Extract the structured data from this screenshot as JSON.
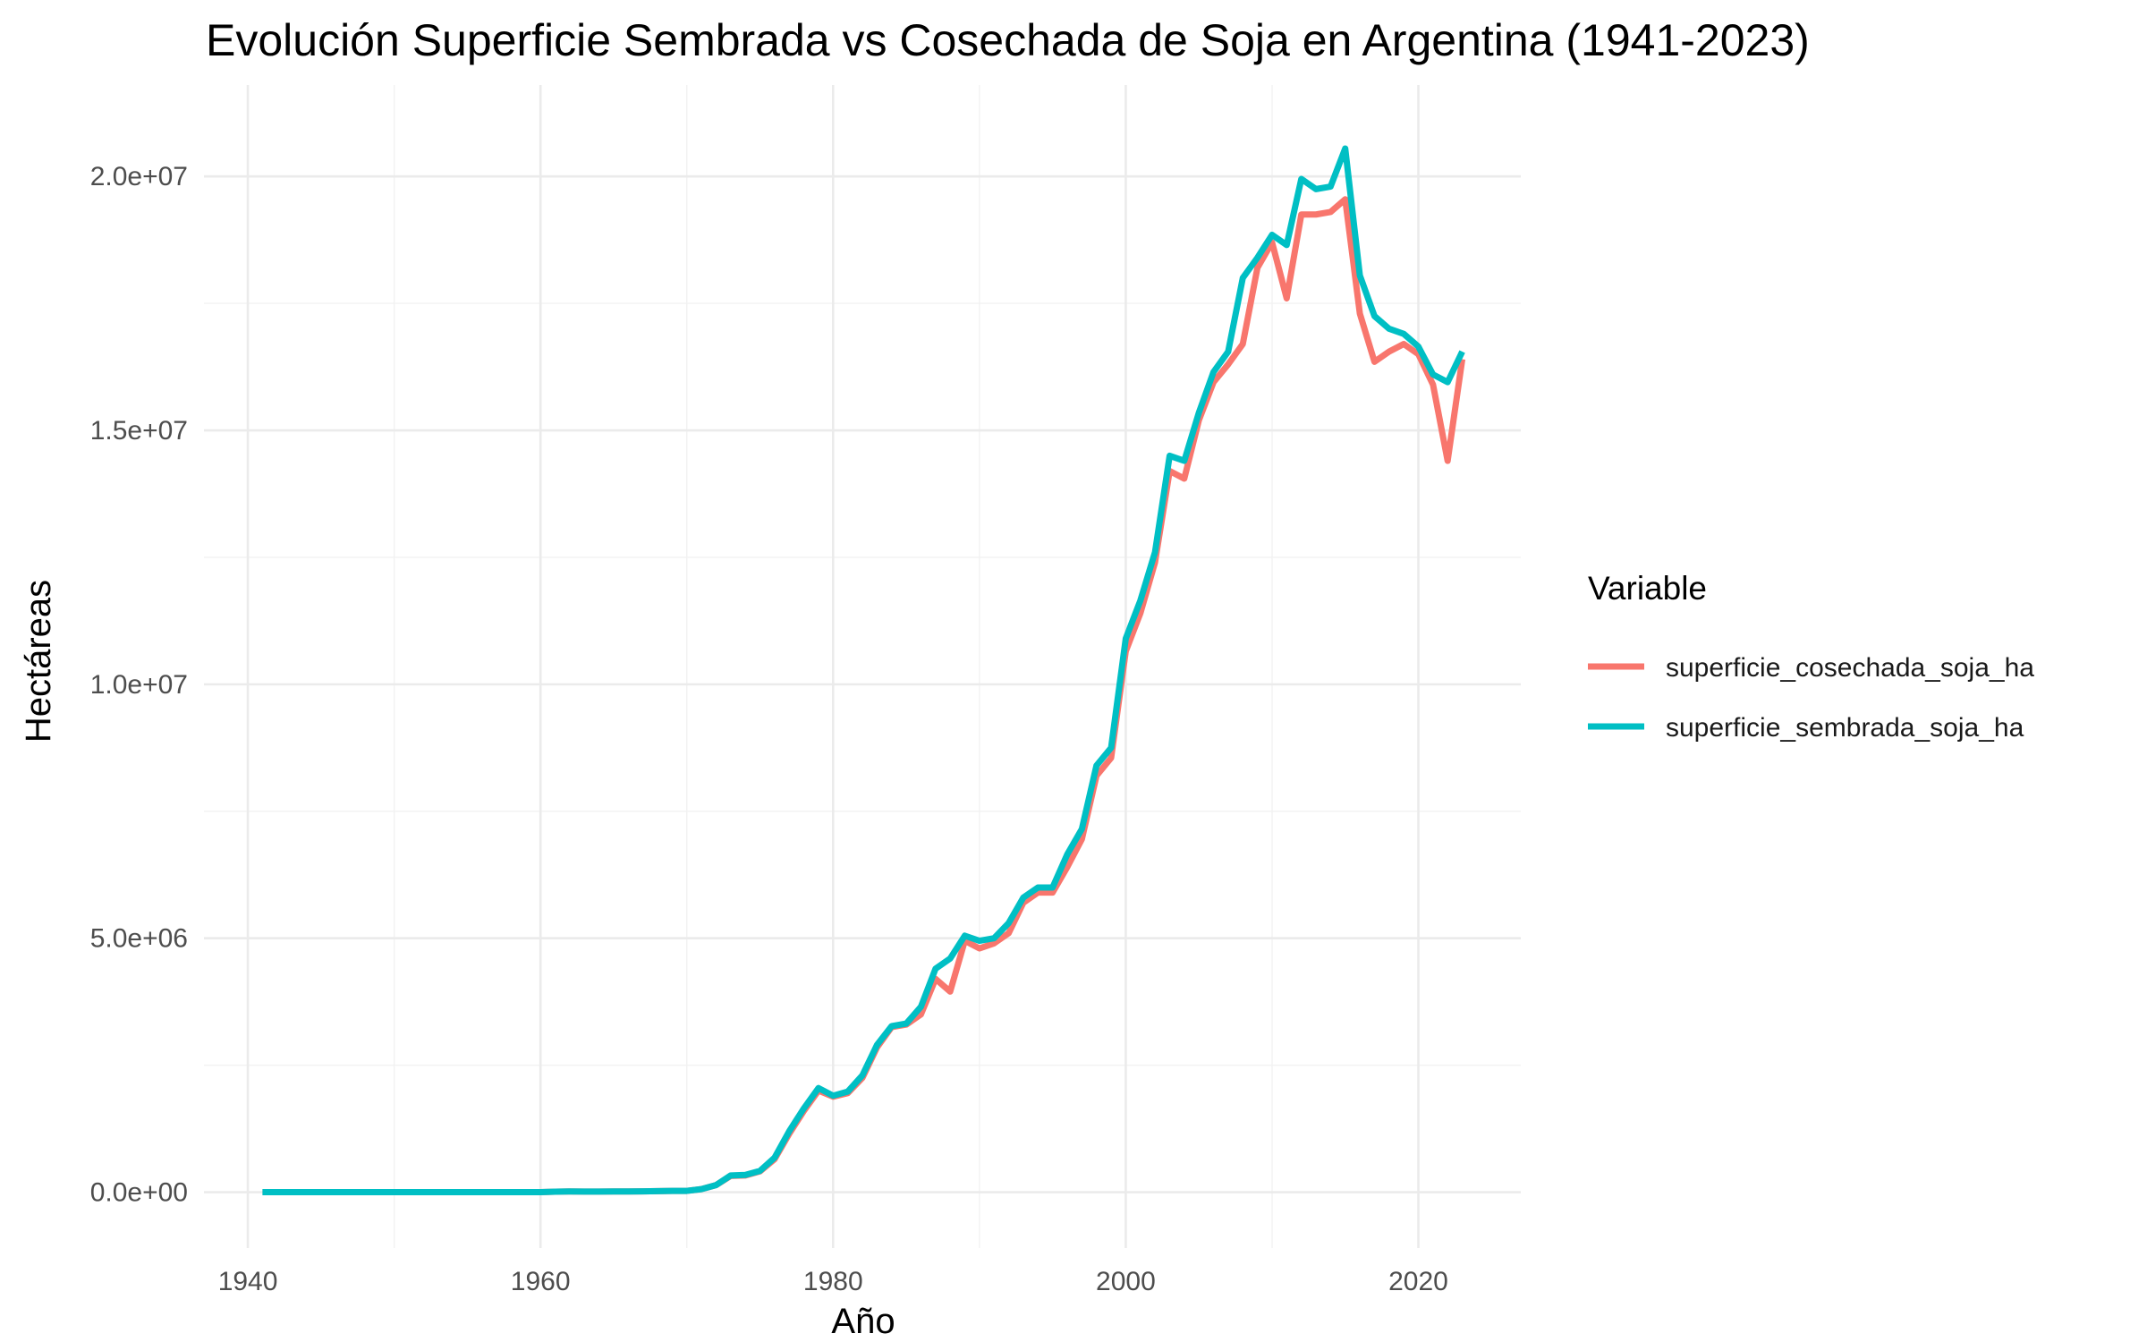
{
  "chart_data": {
    "type": "line",
    "title": "Evolución Superficie Sembrada vs Cosechada de Soja en Argentina (1941-2023)",
    "xlabel": "Año",
    "ylabel": "Hectáreas",
    "xlim": [
      1937,
      2027
    ],
    "ylim": [
      -1100000,
      21800000
    ],
    "x_ticks": [
      1940,
      1960,
      1980,
      2000,
      2020
    ],
    "x_tick_labels": [
      "1940",
      "1960",
      "1980",
      "2000",
      "2020"
    ],
    "y_ticks": [
      0,
      5000000,
      10000000,
      15000000,
      20000000
    ],
    "y_tick_labels": [
      "0.0e+00",
      "5.0e+06",
      "1.0e+07",
      "1.5e+07",
      "2.0e+07"
    ],
    "grid": true,
    "legend": {
      "title": "Variable",
      "position": "right"
    },
    "x": [
      1941,
      1942,
      1943,
      1944,
      1945,
      1946,
      1947,
      1948,
      1949,
      1950,
      1951,
      1952,
      1953,
      1954,
      1955,
      1956,
      1957,
      1958,
      1959,
      1960,
      1961,
      1962,
      1963,
      1964,
      1965,
      1966,
      1967,
      1968,
      1969,
      1970,
      1971,
      1972,
      1973,
      1974,
      1975,
      1976,
      1977,
      1978,
      1979,
      1980,
      1981,
      1982,
      1983,
      1984,
      1985,
      1986,
      1987,
      1988,
      1989,
      1990,
      1991,
      1992,
      1993,
      1994,
      1995,
      1996,
      1997,
      1998,
      1999,
      2000,
      2001,
      2002,
      2003,
      2004,
      2005,
      2006,
      2007,
      2008,
      2009,
      2010,
      2011,
      2012,
      2013,
      2014,
      2015,
      2016,
      2017,
      2018,
      2019,
      2020,
      2021,
      2022,
      2023
    ],
    "series": [
      {
        "name": "superficie_cosechada_soja_ha",
        "color": "#F8766D",
        "values": [
          1000,
          800,
          600,
          500,
          500,
          500,
          500,
          500,
          500,
          500,
          500,
          500,
          500,
          500,
          500,
          500,
          500,
          500,
          500,
          1000,
          10000,
          15000,
          12000,
          12000,
          14000,
          15000,
          17000,
          20000,
          25000,
          26000,
          60000,
          140000,
          320000,
          330000,
          410000,
          650000,
          1150000,
          1600000,
          2000000,
          1880000,
          1950000,
          2250000,
          2850000,
          3250000,
          3300000,
          3500000,
          4200000,
          3950000,
          4950000,
          4800000,
          4900000,
          5100000,
          5700000,
          5900000,
          5900000,
          6400000,
          6950000,
          8200000,
          8550000,
          10650000,
          11400000,
          12400000,
          14200000,
          14050000,
          15200000,
          15950000,
          16300000,
          16700000,
          18200000,
          18700000,
          17600000,
          19250000,
          19250000,
          19300000,
          19550000,
          17300000,
          16350000,
          16550000,
          16700000,
          16500000,
          15900000,
          14400000,
          16400000
        ]
      },
      {
        "name": "superficie_sembrada_soja_ha",
        "color": "#00BFC4",
        "values": [
          1000,
          800,
          600,
          500,
          500,
          500,
          500,
          500,
          500,
          500,
          500,
          500,
          500,
          500,
          500,
          500,
          500,
          500,
          500,
          1000,
          10000,
          15000,
          12000,
          12000,
          14000,
          15000,
          17000,
          20000,
          25000,
          26000,
          60000,
          140000,
          330000,
          340000,
          420000,
          680000,
          1200000,
          1650000,
          2050000,
          1900000,
          1980000,
          2300000,
          2900000,
          3270000,
          3320000,
          3650000,
          4400000,
          4600000,
          5050000,
          4950000,
          5000000,
          5300000,
          5800000,
          6000000,
          6000000,
          6650000,
          7150000,
          8400000,
          8750000,
          10900000,
          11650000,
          12600000,
          14500000,
          14400000,
          15350000,
          16150000,
          16550000,
          18000000,
          18400000,
          18850000,
          18650000,
          19950000,
          19750000,
          19800000,
          20550000,
          18050000,
          17250000,
          17000000,
          16900000,
          16650000,
          16100000,
          15950000,
          16550000
        ]
      }
    ]
  }
}
